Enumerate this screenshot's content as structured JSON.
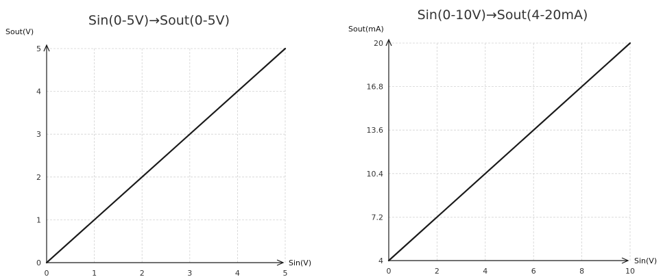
{
  "chart_data": [
    {
      "type": "line",
      "title": "Sin(0-5V)→Sout(0-5V)",
      "xlabel": "Sin(V)",
      "ylabel": "Sout(V)",
      "x_ticks": [
        "0",
        "1",
        "2",
        "3",
        "4",
        "5"
      ],
      "y_ticks": [
        "0",
        "1",
        "2",
        "3",
        "4",
        "5"
      ],
      "xlim": [
        0,
        5
      ],
      "ylim": [
        0,
        5
      ],
      "grid": true,
      "series": [
        {
          "x": [
            0,
            5
          ],
          "y": [
            0,
            5
          ]
        }
      ]
    },
    {
      "type": "line",
      "title": "Sin(0-10V)→Sout(4-20mA)",
      "xlabel": "Sin(V)",
      "ylabel": "Sout(mA)",
      "x_ticks": [
        "0",
        "2",
        "4",
        "6",
        "8",
        "10"
      ],
      "y_ticks": [
        "4",
        "7.2",
        "10.4",
        "13.6",
        "16.8",
        "20"
      ],
      "xlim": [
        0,
        10
      ],
      "ylim": [
        4,
        20
      ],
      "grid": true,
      "series": [
        {
          "x": [
            0,
            10
          ],
          "y": [
            4,
            20
          ]
        }
      ]
    }
  ]
}
